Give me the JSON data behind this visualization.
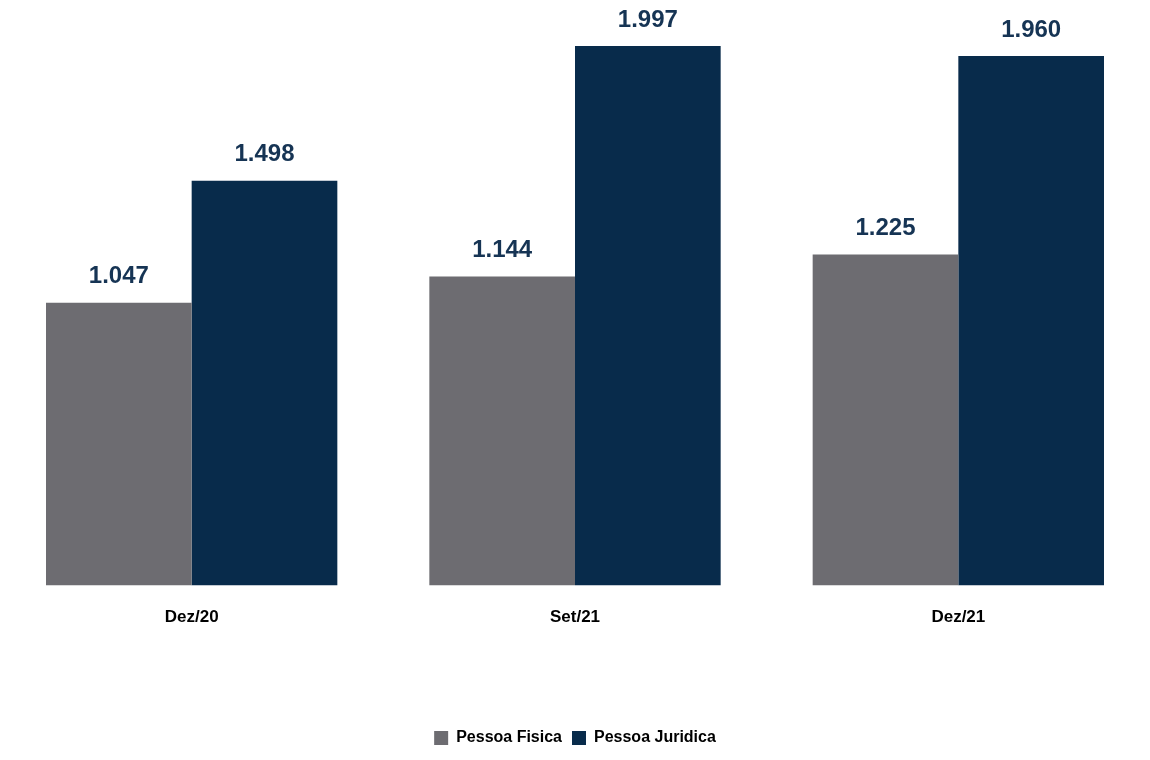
{
  "chart_data": {
    "type": "bar",
    "categories": [
      "Dez/20",
      "Set/21",
      "Dez/21"
    ],
    "series": [
      {
        "name": "Pessoa Fisica",
        "color": "#6d6c71",
        "values": [
          1.047,
          1.144,
          1.225
        ],
        "value_labels": [
          "1.047",
          "1.144",
          "1.225"
        ]
      },
      {
        "name": "Pessoa Juridica",
        "color": "#082b4b",
        "values": [
          1.498,
          1.997,
          1.96
        ],
        "value_labels": [
          "1.498",
          "1.997",
          "1.960"
        ]
      }
    ],
    "grid": false,
    "legend": "bottom"
  }
}
